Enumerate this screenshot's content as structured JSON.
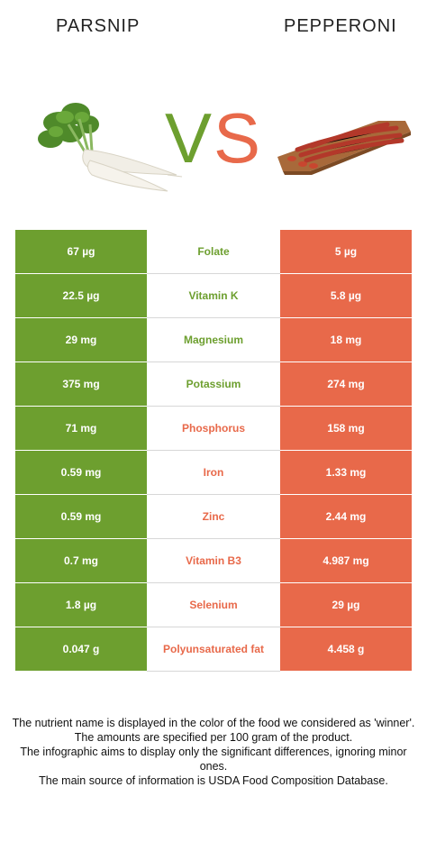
{
  "header": {
    "left_food": "PARSNIP",
    "right_food": "PEPPERONI",
    "vs_letter_v": "V",
    "vs_letter_s": "S"
  },
  "colors": {
    "green": "#6d9f2f",
    "red": "#e8694a"
  },
  "rows": [
    {
      "left": "67 µg",
      "nutrient": "Folate",
      "right": "5 µg",
      "winner": "green"
    },
    {
      "left": "22.5 µg",
      "nutrient": "Vitamin K",
      "right": "5.8 µg",
      "winner": "green"
    },
    {
      "left": "29 mg",
      "nutrient": "Magnesium",
      "right": "18 mg",
      "winner": "green"
    },
    {
      "left": "375 mg",
      "nutrient": "Potassium",
      "right": "274 mg",
      "winner": "green"
    },
    {
      "left": "71 mg",
      "nutrient": "Phosphorus",
      "right": "158 mg",
      "winner": "red"
    },
    {
      "left": "0.59 mg",
      "nutrient": "Iron",
      "right": "1.33 mg",
      "winner": "red"
    },
    {
      "left": "0.59 mg",
      "nutrient": "Zinc",
      "right": "2.44 mg",
      "winner": "red"
    },
    {
      "left": "0.7 mg",
      "nutrient": "Vitamin B3",
      "right": "4.987 mg",
      "winner": "red"
    },
    {
      "left": "1.8 µg",
      "nutrient": "Selenium",
      "right": "29 µg",
      "winner": "red"
    },
    {
      "left": "0.047 g",
      "nutrient": "Polyunsaturated fat",
      "right": "4.458 g",
      "winner": "red"
    }
  ],
  "footer": {
    "line1": "The nutrient name is displayed in the color of the food we considered as 'winner'.",
    "line2": "The amounts are specified per 100 gram of the product.",
    "line3": "The infographic aims to display only the significant differences, ignoring minor ones.",
    "line4": "The main source of information is USDA Food Composition Database."
  }
}
